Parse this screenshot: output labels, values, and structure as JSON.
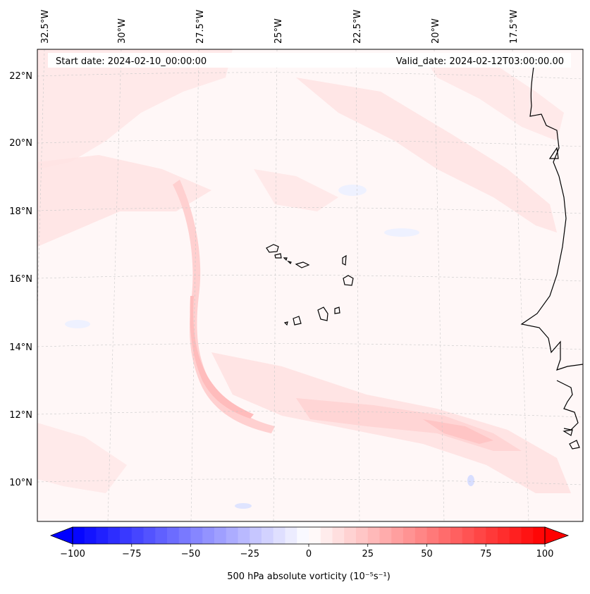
{
  "map": {
    "title_left": "Start date: 2024-02-10_00:00:00",
    "title_right": "Valid_date: 2024-02-12T03:00:00.00",
    "lon_labels": [
      "32.5°W",
      "30°W",
      "27.5°W",
      "25°W",
      "22.5°W",
      "20°W",
      "17.5°W"
    ],
    "lat_labels": [
      "22°N",
      "20°N",
      "18°N",
      "16°N",
      "14°N",
      "12°N",
      "10°N"
    ],
    "field": "500 hPa absolute vorticity"
  },
  "colorbar": {
    "label": "500 hPa absolute vorticity (10⁻⁵s⁻¹)",
    "ticks": [
      "−100",
      "−75",
      "−50",
      "−25",
      "0",
      "25",
      "50",
      "75",
      "100"
    ],
    "tick_values": [
      -100,
      -75,
      -50,
      -25,
      0,
      25,
      50,
      75,
      100
    ],
    "range": [
      -100,
      100
    ],
    "colors": {
      "low": "#0000ff",
      "mid": "#ffffff",
      "high": "#ff0000"
    }
  }
}
